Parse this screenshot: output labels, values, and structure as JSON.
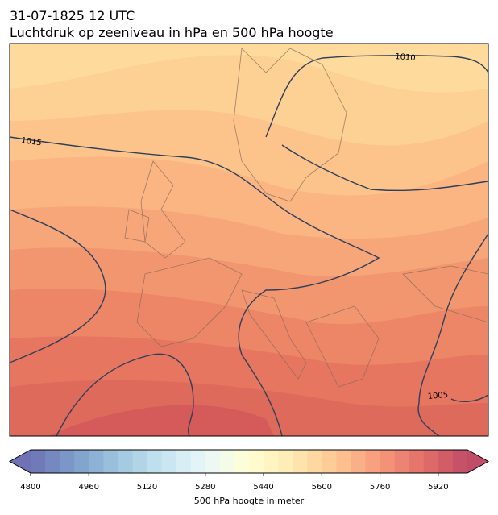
{
  "header": {
    "title": "31-07-1825 12 UTC",
    "subtitle": "Luchtdruk op zeeniveau in hPa en 500 hPa hoogte"
  },
  "map": {
    "isobar_labels": [
      1010,
      1015,
      1005
    ]
  },
  "colorbar": {
    "label": "500 hPa hoogte in meter",
    "range": [
      4800,
      6000
    ],
    "ticks": [
      4800,
      4960,
      5120,
      5280,
      5440,
      5600,
      5760,
      5920
    ]
  }
}
